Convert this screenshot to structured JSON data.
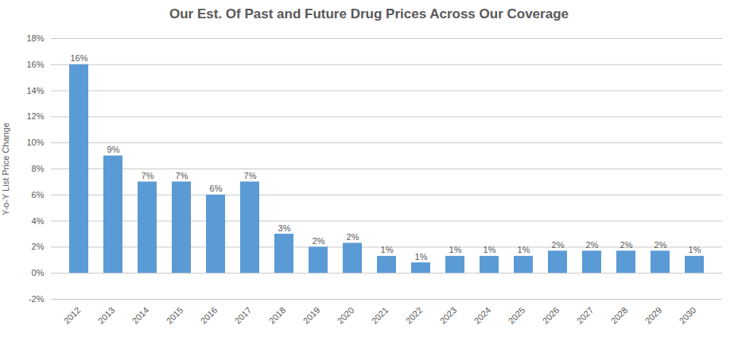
{
  "chart_data": {
    "type": "bar",
    "title": "Our Est. Of Past and Future Drug Prices Across Our Coverage",
    "ylabel": "Y-o-Y List Price Change",
    "categories": [
      "2012",
      "2013",
      "2014",
      "2015",
      "2016",
      "2017",
      "2018",
      "2019",
      "2020",
      "2021",
      "2022",
      "2023",
      "2024",
      "2025",
      "2026",
      "2027",
      "2028",
      "2029",
      "2030"
    ],
    "values": [
      16,
      9,
      7,
      7,
      6,
      7,
      3,
      2,
      2.3,
      1.3,
      0.8,
      1.3,
      1.3,
      1.3,
      1.7,
      1.7,
      1.7,
      1.7,
      1.3
    ],
    "value_labels": [
      "16%",
      "9%",
      "7%",
      "7%",
      "6%",
      "7%",
      "3%",
      "2%",
      "2%",
      "1%",
      "1%",
      "1%",
      "1%",
      "1%",
      "2%",
      "2%",
      "2%",
      "2%",
      "1%"
    ],
    "data_labels": true,
    "color": "#5b9bd5",
    "ylim": [
      -2,
      18
    ],
    "yticks": [
      {
        "value": -2,
        "label": "-2%"
      },
      {
        "value": 0,
        "label": "0%"
      },
      {
        "value": 2,
        "label": "2%"
      },
      {
        "value": 4,
        "label": "4%"
      },
      {
        "value": 6,
        "label": "6%"
      },
      {
        "value": 8,
        "label": "8%"
      },
      {
        "value": 10,
        "label": "10%"
      },
      {
        "value": 12,
        "label": "12%"
      },
      {
        "value": 14,
        "label": "14%"
      },
      {
        "value": 16,
        "label": "16%"
      },
      {
        "value": 18,
        "label": "18%"
      }
    ],
    "grid": true
  }
}
